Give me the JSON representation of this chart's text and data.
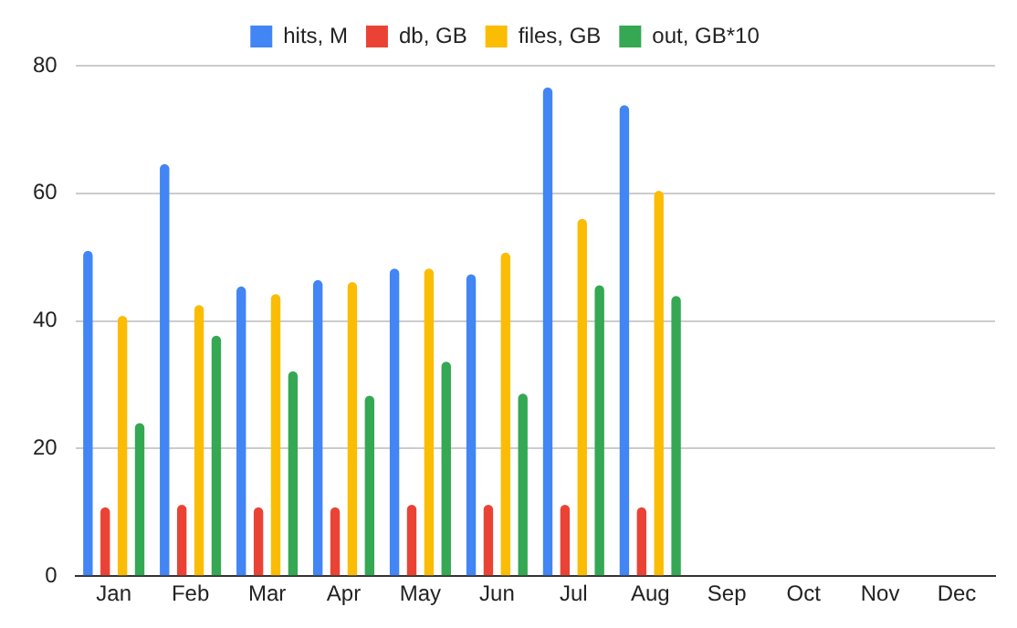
{
  "chart_data": {
    "type": "bar",
    "categories": [
      "Jan",
      "Feb",
      "Mar",
      "Apr",
      "May",
      "Jun",
      "Jul",
      "Aug",
      "Sep",
      "Oct",
      "Nov",
      "Dec"
    ],
    "series": [
      {
        "name": "hits, M",
        "color": "#4285f4",
        "values": [
          51.0,
          64.6,
          45.4,
          46.4,
          48.2,
          47.3,
          76.6,
          73.8,
          null,
          null,
          null,
          null
        ]
      },
      {
        "name": "db, GB",
        "color": "#ea4335",
        "values": [
          10.8,
          11.2,
          10.8,
          10.8,
          11.2,
          11.2,
          11.2,
          10.8,
          null,
          null,
          null,
          null
        ]
      },
      {
        "name": "files, GB",
        "color": "#fbbc04",
        "values": [
          40.8,
          42.5,
          44.2,
          46.1,
          48.2,
          50.7,
          56.0,
          60.4,
          null,
          null,
          null,
          null
        ]
      },
      {
        "name": "out, GB*10",
        "color": "#34a853",
        "values": [
          24.0,
          37.7,
          32.1,
          28.3,
          33.6,
          28.6,
          45.6,
          43.9,
          null,
          null,
          null,
          null
        ]
      }
    ],
    "ylim": [
      0,
      80
    ],
    "yticks": [
      0,
      20,
      40,
      60,
      80
    ],
    "grid": "y",
    "legend": "top"
  }
}
